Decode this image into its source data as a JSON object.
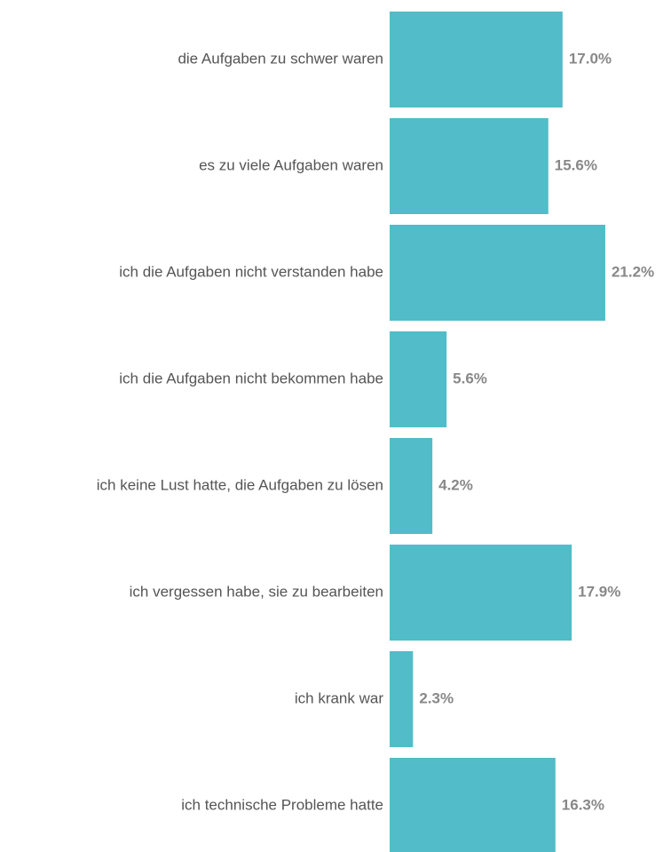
{
  "chart_data": {
    "type": "bar",
    "orientation": "horizontal",
    "color": "#52bcc8",
    "categories": [
      "die Aufgaben zu schwer waren",
      "es zu viele Aufgaben waren",
      "ich die Aufgaben nicht verstanden habe",
      "ich die Aufgaben nicht bekommen habe",
      "ich keine Lust hatte, die Aufgaben zu lösen",
      "ich vergessen habe, sie zu bearbeiten",
      "ich krank war",
      "ich technische Probleme hatte"
    ],
    "values": [
      17.0,
      15.6,
      21.2,
      5.6,
      4.2,
      17.9,
      2.3,
      16.3
    ],
    "value_labels": [
      "17.0%",
      "15.6%",
      "21.2%",
      "5.6%",
      "4.2%",
      "17.9%",
      "2.3%",
      "16.3%"
    ]
  }
}
